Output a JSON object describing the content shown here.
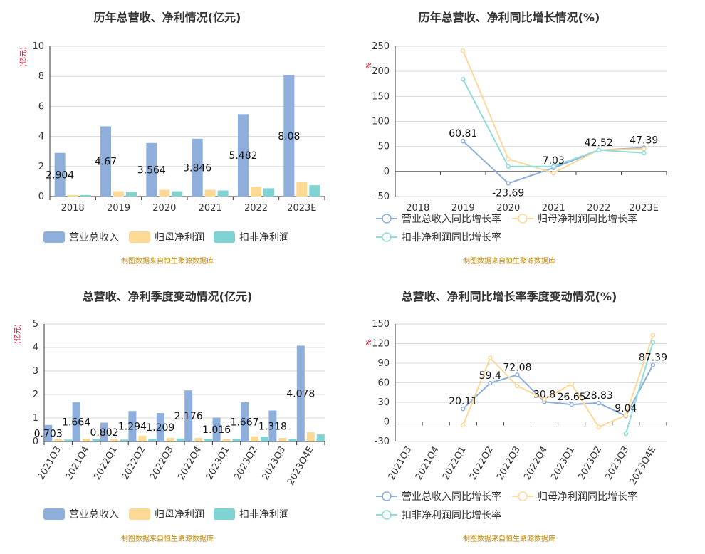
{
  "source_note": "制图数据来自恒生聚源数据库",
  "colors": {
    "revenue": "#8eaedc",
    "net_profit": "#fdd996",
    "deducted_profit": "#7fd3d3",
    "line_revenue": "#8eaedc",
    "line_net": "#fcd89b",
    "line_deducted": "#8fdcdc",
    "unit": "#d9001b",
    "source": "#b8860b"
  },
  "chart_data": [
    {
      "id": "annual_bar",
      "type": "bar",
      "title": "历年总营收、净利情况(亿元)",
      "unit_label": "(亿元)",
      "categories": [
        "2018",
        "2019",
        "2020",
        "2021",
        "2022",
        "2023E"
      ],
      "ylim": [
        0,
        10
      ],
      "yticks": [
        0,
        2,
        4,
        6,
        8,
        10
      ],
      "series": [
        {
          "name": "营业总收入",
          "values": [
            2.904,
            4.67,
            3.564,
            3.846,
            5.482,
            8.08
          ],
          "labels": [
            "2.904",
            "4.67",
            "3.564",
            "3.846",
            "5.482",
            "8.08"
          ]
        },
        {
          "name": "归母净利润",
          "values": [
            0.1,
            0.35,
            0.45,
            0.45,
            0.65,
            0.95
          ]
        },
        {
          "name": "扣非净利润",
          "values": [
            0.1,
            0.3,
            0.35,
            0.4,
            0.55,
            0.75
          ]
        }
      ]
    },
    {
      "id": "annual_line",
      "type": "line",
      "title": "历年总营收、净利同比增长情况(%)",
      "unit_label": "%",
      "categories": [
        "2018",
        "2019",
        "2020",
        "2021",
        "2022",
        "2023E"
      ],
      "ylim": [
        -50,
        250
      ],
      "yticks": [
        -50,
        0,
        50,
        100,
        150,
        200,
        250
      ],
      "series": [
        {
          "name": "营业总收入同比增长率",
          "values": [
            null,
            60.81,
            -23.69,
            7.03,
            42.52,
            47.39
          ],
          "labels": [
            null,
            "60.81",
            "-23.69",
            "7.03",
            "42.52",
            "47.39"
          ]
        },
        {
          "name": "归母净利润同比增长率",
          "values": [
            null,
            241,
            25,
            -3,
            43,
            45
          ]
        },
        {
          "name": "扣非净利润同比增长率",
          "values": [
            null,
            184,
            10,
            10,
            43,
            37
          ]
        }
      ]
    },
    {
      "id": "quarter_bar",
      "type": "bar",
      "title": "总营收、净利季度变动情况(亿元)",
      "unit_label": "(亿元)",
      "categories": [
        "2021Q3",
        "2021Q4",
        "2022Q1",
        "2022Q2",
        "2022Q3",
        "2022Q4",
        "2023Q1",
        "2023Q2",
        "2023Q3",
        "2023Q4E"
      ],
      "ylim": [
        0,
        5
      ],
      "yticks": [
        0,
        1,
        2,
        3,
        4,
        5
      ],
      "series": [
        {
          "name": "营业总收入",
          "values": [
            0.703,
            1.664,
            0.802,
            1.294,
            1.209,
            2.176,
            1.016,
            1.667,
            1.318,
            4.078
          ],
          "labels": [
            "0.703",
            "1.664",
            "0.802",
            "1.294",
            "1.209",
            "2.176",
            "1.016",
            "1.667",
            "1.318",
            "4.078"
          ]
        },
        {
          "name": "归母净利润",
          "values": [
            0.1,
            0.12,
            0.1,
            0.25,
            0.15,
            0.15,
            0.1,
            0.22,
            0.15,
            0.4
          ]
        },
        {
          "name": "扣非净利润",
          "values": [
            0.08,
            0.1,
            0.08,
            0.12,
            0.13,
            0.12,
            0.12,
            0.2,
            0.12,
            0.3
          ]
        }
      ]
    },
    {
      "id": "quarter_line",
      "type": "line",
      "title": "总营收、净利同比增长率季度变动情况(%)",
      "unit_label": "%",
      "categories": [
        "2021Q3",
        "2021Q4",
        "2022Q1",
        "2022Q2",
        "2022Q3",
        "2022Q4",
        "2023Q1",
        "2023Q2",
        "2023Q3",
        "2023Q4E"
      ],
      "ylim": [
        -30,
        150
      ],
      "yticks": [
        -30,
        0,
        30,
        60,
        90,
        120,
        150
      ],
      "series": [
        {
          "name": "营业总收入同比增长率",
          "values": [
            null,
            null,
            20.11,
            59.4,
            72.08,
            30.8,
            26.65,
            28.83,
            9.04,
            87.39
          ],
          "labels": [
            null,
            null,
            "20.11",
            "59.4",
            "72.08",
            "30.8",
            "26.65",
            "28.83",
            "9.04",
            "87.39"
          ]
        },
        {
          "name": "归母净利润同比增长率",
          "values": [
            null,
            null,
            -5,
            98,
            55,
            35,
            58,
            -8,
            10,
            133
          ]
        },
        {
          "name": "扣非净利润同比增长率",
          "values": [
            null,
            null,
            null,
            null,
            null,
            null,
            null,
            null,
            -18,
            122
          ]
        }
      ]
    }
  ]
}
